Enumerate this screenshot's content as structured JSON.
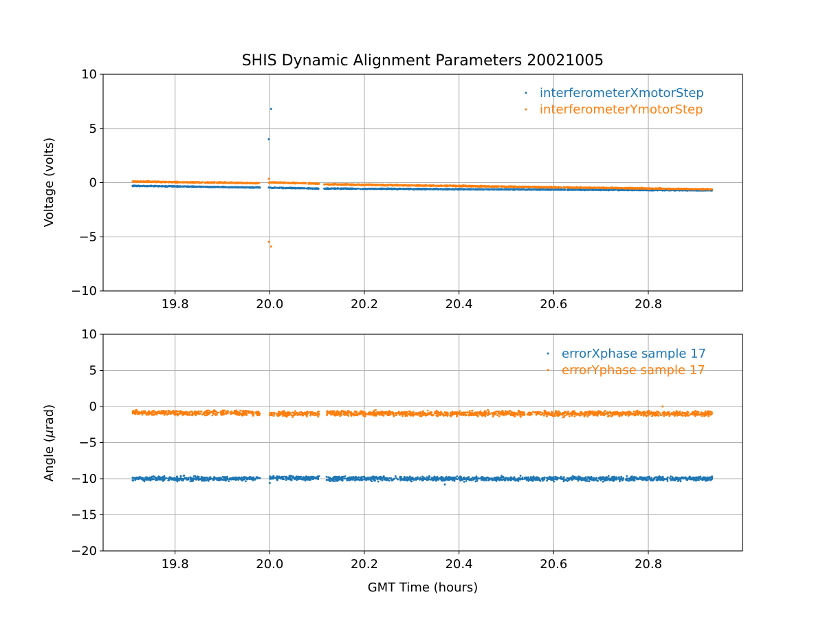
{
  "chart_data": [
    {
      "type": "scatter",
      "title": "SHIS Dynamic Alignment Parameters 20021005",
      "xlabel": "",
      "ylabel": "Voltage (volts)",
      "xlim": [
        19.648,
        20.999
      ],
      "ylim": [
        -10,
        10
      ],
      "xticks": [
        19.8,
        20.0,
        20.2,
        20.4,
        20.6,
        20.8
      ],
      "xtick_labels": [
        "19.8",
        "20.0",
        "20.2",
        "20.4",
        "20.6",
        "20.8"
      ],
      "yticks": [
        10,
        5,
        0,
        -5,
        -10
      ],
      "ytick_labels": [
        "10",
        "5",
        "0",
        "−5",
        "−10"
      ],
      "grid": true,
      "legend": "top-right",
      "series": [
        {
          "name": "interferometerXmotorStep",
          "color": "#1f77b4",
          "noise": 0.04,
          "segments": [
            {
              "x": [
                19.71,
                19.98
              ],
              "y": [
                -0.3,
                -0.45
              ]
            },
            {
              "x": [
                20.0,
                20.105
              ],
              "y": [
                -0.48,
                -0.55
              ]
            },
            {
              "x": [
                20.115,
                20.935
              ],
              "y": [
                -0.55,
                -0.72
              ]
            }
          ],
          "outliers": [
            [
              20.003,
              6.8
            ],
            [
              19.998,
              4.0
            ],
            [
              19.998,
              -0.45
            ]
          ]
        },
        {
          "name": "interferometerYmotorStep",
          "color": "#ff7f0e",
          "noise": 0.05,
          "segments": [
            {
              "x": [
                19.71,
                19.98
              ],
              "y": [
                0.1,
                -0.05
              ]
            },
            {
              "x": [
                20.0,
                20.105
              ],
              "y": [
                0.02,
                -0.1
              ]
            },
            {
              "x": [
                20.115,
                20.935
              ],
              "y": [
                -0.15,
                -0.62
              ]
            }
          ],
          "outliers": [
            [
              19.998,
              0.35
            ],
            [
              19.998,
              0.0
            ],
            [
              19.998,
              -5.45
            ],
            [
              20.003,
              -5.9
            ]
          ]
        }
      ]
    },
    {
      "type": "scatter",
      "xlabel": "GMT Time (hours)",
      "ylabel_prefix": "Angle (",
      "ylabel_mu": "μ",
      "ylabel_suffix": "rad)",
      "xlim": [
        19.648,
        20.999
      ],
      "ylim": [
        -20,
        10
      ],
      "xticks": [
        19.8,
        20.0,
        20.2,
        20.4,
        20.6,
        20.8
      ],
      "xtick_labels": [
        "19.8",
        "20.0",
        "20.2",
        "20.4",
        "20.6",
        "20.8"
      ],
      "yticks": [
        10,
        5,
        0,
        -5,
        -10,
        -15,
        -20
      ],
      "ytick_labels": [
        "10",
        "5",
        "0",
        "−5",
        "−10",
        "−15",
        "−20"
      ],
      "grid": true,
      "legend": "top-right",
      "series": [
        {
          "name": "errorXphase sample 17",
          "color": "#1f77b4",
          "noise": 0.3,
          "segments": [
            {
              "x": [
                19.71,
                19.98
              ],
              "y": [
                -10.0,
                -10.0
              ]
            },
            {
              "x": [
                20.0,
                20.105
              ],
              "y": [
                -9.9,
                -9.9
              ]
            },
            {
              "x": [
                20.12,
                20.935
              ],
              "y": [
                -10.0,
                -10.0
              ]
            }
          ],
          "outliers": [
            [
              20.0,
              -10.6
            ],
            [
              20.37,
              -10.8
            ]
          ]
        },
        {
          "name": "errorYphase sample 17",
          "color": "#ff7f0e",
          "noise": 0.35,
          "segments": [
            {
              "x": [
                19.71,
                19.98
              ],
              "y": [
                -0.85,
                -0.9
              ]
            },
            {
              "x": [
                20.0,
                20.105
              ],
              "y": [
                -1.0,
                -1.0
              ]
            },
            {
              "x": [
                20.12,
                20.935
              ],
              "y": [
                -0.95,
                -1.0
              ]
            }
          ],
          "outliers": [
            [
              20.83,
              0.0
            ]
          ]
        }
      ]
    }
  ]
}
